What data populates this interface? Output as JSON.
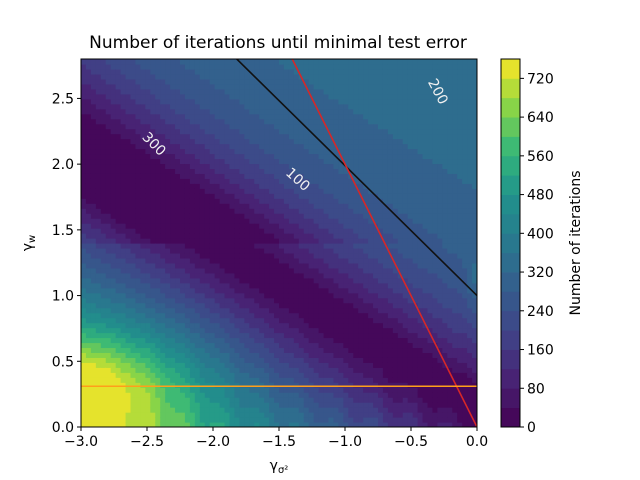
{
  "chart_data": {
    "type": "heatmap",
    "title": "Number of iterations until minimal test error",
    "xlabel": "γ",
    "xlabel_sub": "σ²",
    "ylabel": "γ",
    "ylabel_sub": "w",
    "xlim": [
      -3.0,
      0.0
    ],
    "ylim": [
      0.0,
      2.8
    ],
    "xticks": [
      {
        "value": -3.0,
        "label": "−3.0"
      },
      {
        "value": -2.5,
        "label": "−2.5"
      },
      {
        "value": -2.0,
        "label": "−2.0"
      },
      {
        "value": -1.5,
        "label": "−1.5"
      },
      {
        "value": -1.0,
        "label": "−1.0"
      },
      {
        "value": -0.5,
        "label": "−0.5"
      },
      {
        "value": 0.0,
        "label": "0.0"
      }
    ],
    "yticks": [
      {
        "value": 0.0,
        "label": "0.0"
      },
      {
        "value": 0.5,
        "label": "0.5"
      },
      {
        "value": 1.0,
        "label": "1.0"
      },
      {
        "value": 1.5,
        "label": "1.5"
      },
      {
        "value": 2.0,
        "label": "2.0"
      },
      {
        "value": 2.5,
        "label": "2.5"
      }
    ],
    "colorbar": {
      "label": "Number of iterations",
      "min": 0,
      "max": 760,
      "levels": 19,
      "ticks": [
        {
          "value": 0,
          "label": "0"
        },
        {
          "value": 80,
          "label": "80"
        },
        {
          "value": 160,
          "label": "160"
        },
        {
          "value": 240,
          "label": "240"
        },
        {
          "value": 320,
          "label": "320"
        },
        {
          "value": 400,
          "label": "400"
        },
        {
          "value": 480,
          "label": "480"
        },
        {
          "value": 560,
          "label": "560"
        },
        {
          "value": 640,
          "label": "640"
        },
        {
          "value": 720,
          "label": "720"
        }
      ]
    },
    "contour_labels": [
      {
        "text": "300",
        "x": -2.45,
        "y": 2.15,
        "rotation": 45
      },
      {
        "text": "100",
        "x": -1.36,
        "y": 1.88,
        "rotation": 42
      },
      {
        "text": "200",
        "x": -0.3,
        "y": 2.55,
        "rotation": 62
      }
    ],
    "lines": [
      {
        "name": "black",
        "color": "#111111",
        "points": [
          [
            -1.82,
            2.8
          ],
          [
            0.0,
            1.0
          ]
        ]
      },
      {
        "name": "red",
        "color": "#d62728",
        "points": [
          [
            -1.4,
            2.8
          ],
          [
            0.0,
            0.0
          ]
        ]
      },
      {
        "name": "orange",
        "color": "#ff9f1a",
        "points": [
          [
            -3.0,
            0.31
          ],
          [
            0.0,
            0.31
          ]
        ]
      }
    ]
  }
}
